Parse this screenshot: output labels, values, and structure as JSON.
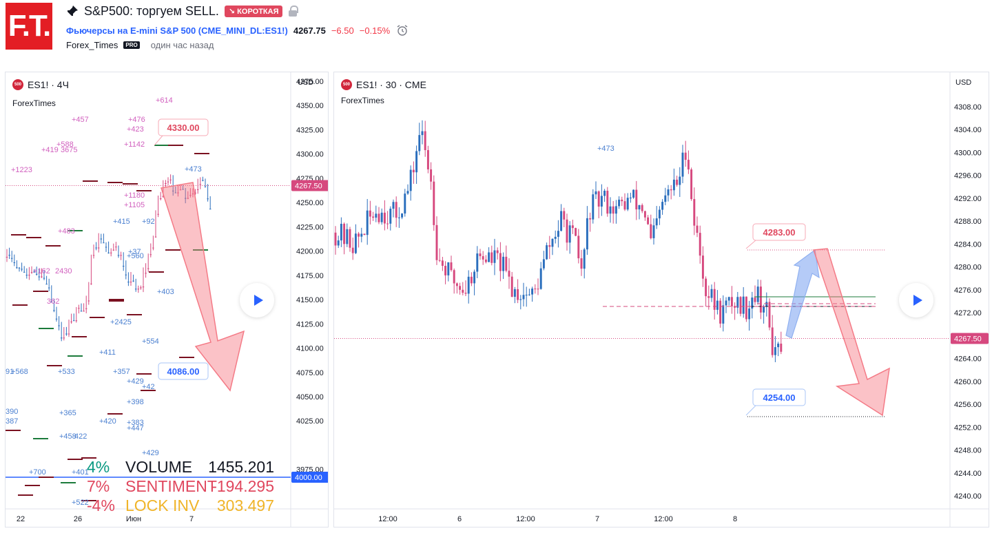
{
  "header": {
    "logo_text": "F.T.",
    "title": "S&P500: торгуем SELL.",
    "badge": "↘ КОРОТКАЯ",
    "symbol_name": "Фьючерсы на E-mini S&P 500",
    "symbol_code": "CME_MINI_DL:ES1!",
    "price": "4267.75",
    "change": "−6.50",
    "change_pct": "−0.15%",
    "author": "Forex_Times",
    "author_badge": "PRO",
    "time_ago": "один час назад",
    "icons": [
      "pin-icon",
      "lock-icon",
      "alarm-clock-icon"
    ]
  },
  "left_chart": {
    "title": "ES1! · 4Ч",
    "symbol_icon": "500",
    "author": "ForexTimes",
    "currency": "USD",
    "price_ticks": [
      "4375.00",
      "4350.00",
      "4325.00",
      "4300.00",
      "4275.00",
      "4250.00",
      "4225.00",
      "4200.00",
      "4175.00",
      "4150.00",
      "4125.00",
      "4100.00",
      "4075.00",
      "4050.00",
      "4025.00",
      "3975.00"
    ],
    "tick_values": [
      4375,
      4350,
      4325,
      4300,
      4275,
      4250,
      4225,
      4200,
      4175,
      4150,
      4125,
      4100,
      4075,
      4050,
      4025,
      3975
    ],
    "last_price": "4267.50",
    "line_price": "4000.00",
    "time_labels": [
      "22",
      "26",
      "Июн",
      "7"
    ],
    "target_high": "4330.00",
    "target_low": "4086.00",
    "annotations": [
      {
        "t": "+614",
        "c": "pink"
      },
      {
        "t": "+457",
        "c": "pink"
      },
      {
        "t": "+476",
        "c": "pink"
      },
      {
        "t": "+423",
        "c": "pink"
      },
      {
        "t": "+588",
        "c": "pink"
      },
      {
        "t": "+419",
        "c": "pink"
      },
      {
        "t": "3675",
        "c": "pink"
      },
      {
        "t": "+1142",
        "c": "pink"
      },
      {
        "t": "+1223",
        "c": "pink"
      },
      {
        "t": "+473",
        "c": "blue"
      },
      {
        "t": "+1180",
        "c": "pink"
      },
      {
        "t": "+1105",
        "c": "pink"
      },
      {
        "t": "+415",
        "c": "blue"
      },
      {
        "t": "+92",
        "c": "blue"
      },
      {
        "t": "+483",
        "c": "pink"
      },
      {
        "t": "+37",
        "c": "blue"
      },
      {
        "t": "+560",
        "c": "blue"
      },
      {
        "t": "+162",
        "c": "pink"
      },
      {
        "t": "2430",
        "c": "pink"
      },
      {
        "t": "+403",
        "c": "blue"
      },
      {
        "t": "362",
        "c": "pink"
      },
      {
        "t": "+2425",
        "c": "blue"
      },
      {
        "t": "+554",
        "c": "blue"
      },
      {
        "t": "+411",
        "c": "blue"
      },
      {
        "t": "+533",
        "c": "blue"
      },
      {
        "t": "+568",
        "c": "blue"
      },
      {
        "t": "+357",
        "c": "blue"
      },
      {
        "t": "+429",
        "c": "blue"
      },
      {
        "t": "+42",
        "c": "blue"
      },
      {
        "t": "+398",
        "c": "blue"
      },
      {
        "t": "390",
        "c": "blue"
      },
      {
        "t": "+365",
        "c": "blue"
      },
      {
        "t": "+420",
        "c": "blue"
      },
      {
        "t": "+383",
        "c": "blue"
      },
      {
        "t": "387",
        "c": "blue"
      },
      {
        "t": "+447",
        "c": "blue"
      },
      {
        "t": "+458",
        "c": "blue"
      },
      {
        "t": "422",
        "c": "blue"
      },
      {
        "t": "+429",
        "c": "blue"
      },
      {
        "t": "+700",
        "c": "blue"
      },
      {
        "t": "+401",
        "c": "blue"
      },
      {
        "t": "+522",
        "c": "blue"
      },
      {
        "t": "91",
        "c": "blue"
      }
    ],
    "stats": [
      {
        "pct": "4%",
        "label": "VOLUME",
        "value": "1455.201",
        "color": "#089981",
        "label_color": "#131722"
      },
      {
        "pct": "7%",
        "label": "SENTIMENT",
        "value": "-194.295",
        "color": "#e0475e",
        "label_color": "#e0475e"
      },
      {
        "pct": "-4%",
        "label": "LOCK INV",
        "value": "303.497",
        "color": "#e0475e",
        "label_color": "#f0b429"
      }
    ]
  },
  "right_chart": {
    "title": "ES1! · 30 · CME",
    "symbol_icon": "500",
    "author": "ForexTimes",
    "currency": "USD",
    "price_ticks": [
      "4308.00",
      "4304.00",
      "4300.00",
      "4296.00",
      "4292.00",
      "4288.00",
      "4284.00",
      "4280.00",
      "4276.00",
      "4272.00",
      "4268.00",
      "4264.00",
      "4260.00",
      "4256.00",
      "4252.00",
      "4248.00",
      "4244.00",
      "4240.00"
    ],
    "tick_values": [
      4308,
      4304,
      4300,
      4296,
      4292,
      4288,
      4284,
      4280,
      4276,
      4272,
      4268,
      4264,
      4260,
      4256,
      4252,
      4248,
      4244,
      4240
    ],
    "last_price": "4267.50",
    "time_labels": [
      "12:00",
      "6",
      "12:00",
      "7",
      "12:00",
      "8"
    ],
    "target_high": "4283.00",
    "target_low": "4254.00",
    "annotation": "+473"
  },
  "colors": {
    "up": "#2a6ebd",
    "down": "#d6487e",
    "pink_label": "#e0475e",
    "blue_label": "#2962ff",
    "axis": "#e0e3eb"
  }
}
